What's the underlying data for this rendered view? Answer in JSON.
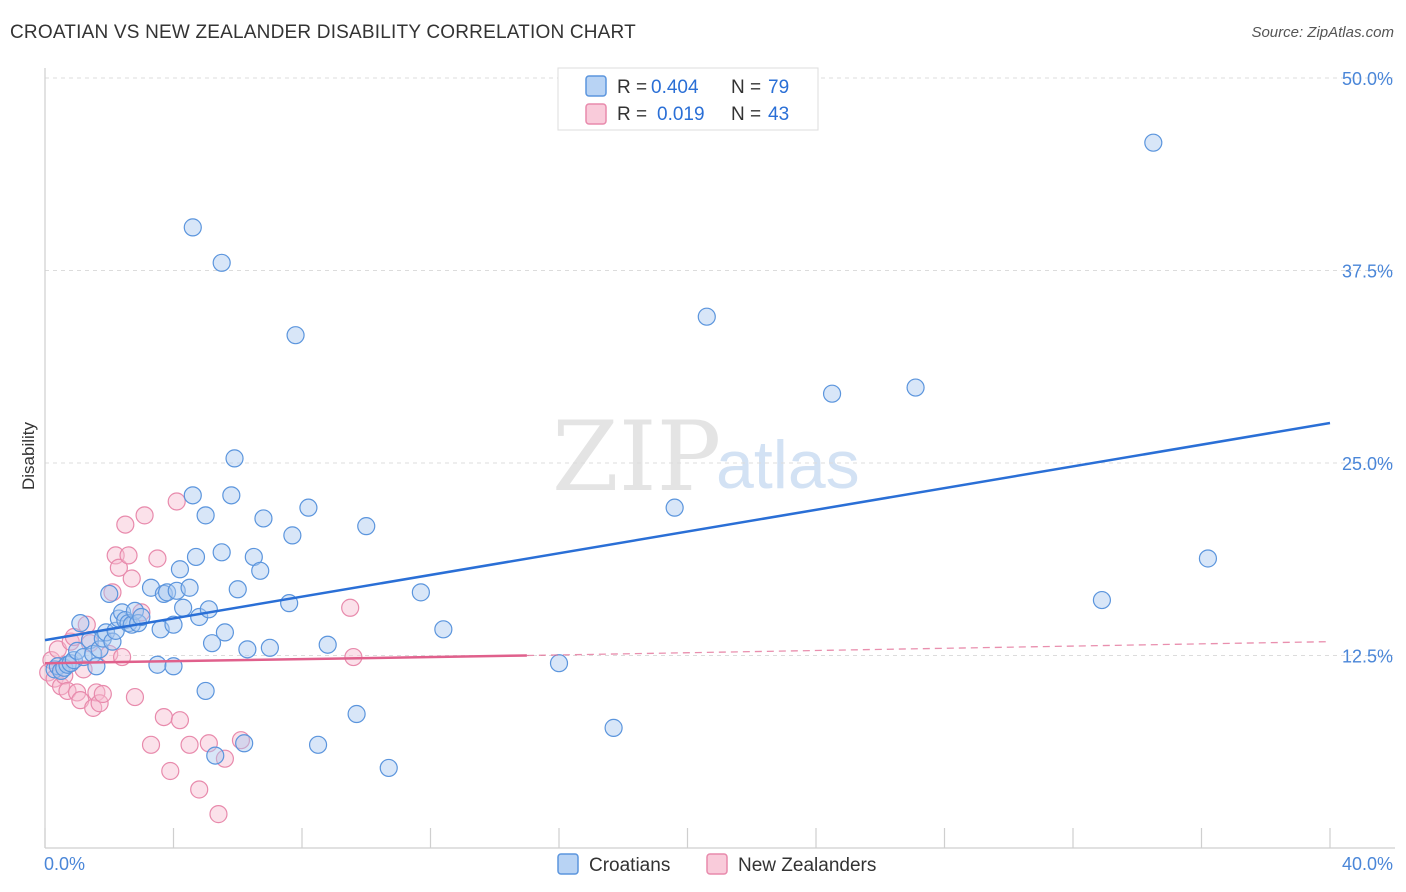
{
  "title": "CROATIAN VS NEW ZEALANDER DISABILITY CORRELATION CHART",
  "source": "Source: ZipAtlas.com",
  "watermark": {
    "zip": "ZIP",
    "atlas": "atlas"
  },
  "legend": {
    "r_label": "R =",
    "n_label": "N =",
    "croatians": {
      "r": "0.404",
      "n": "79"
    },
    "new_zealanders": {
      "r": "0.019",
      "n": "43"
    }
  },
  "colors": {
    "croatians_fill": "#a9c8f0",
    "croatians_stroke": "#5b95dd",
    "croatians_line": "#2a6fd6",
    "nz_fill": "#f6bcd0",
    "nz_stroke": "#e88aac",
    "nz_line": "#e0608c"
  },
  "chart_data": {
    "type": "scatter",
    "title": "CROATIAN VS NEW ZEALANDER DISABILITY CORRELATION CHART",
    "xlabel": "",
    "ylabel": "Disability",
    "xlim": [
      0,
      40
    ],
    "ylim": [
      0,
      50
    ],
    "x_tick_labels": [
      "0.0%",
      "40.0%"
    ],
    "y_ticks": [
      12.5,
      25.0,
      37.5,
      50.0
    ],
    "y_tick_labels": [
      "12.5%",
      "25.0%",
      "37.5%",
      "50.0%"
    ],
    "grid": true,
    "legend_position": "top-center",
    "series": [
      {
        "name": "Croatians",
        "r": 0.404,
        "n": 79,
        "trend": {
          "x": [
            0,
            40
          ],
          "y": [
            13.5,
            27.6
          ],
          "style": "solid"
        },
        "points": [
          [
            0.3,
            11.6
          ],
          [
            0.4,
            11.8
          ],
          [
            0.5,
            11.5
          ],
          [
            0.6,
            11.7
          ],
          [
            0.7,
            11.9
          ],
          [
            0.8,
            12.0
          ],
          [
            0.9,
            12.2
          ],
          [
            1.0,
            12.8
          ],
          [
            1.1,
            14.6
          ],
          [
            1.2,
            12.4
          ],
          [
            1.4,
            13.5
          ],
          [
            1.5,
            12.6
          ],
          [
            1.6,
            11.8
          ],
          [
            1.7,
            12.9
          ],
          [
            1.8,
            13.6
          ],
          [
            1.9,
            14.0
          ],
          [
            2.0,
            16.5
          ],
          [
            2.1,
            13.4
          ],
          [
            2.2,
            14.1
          ],
          [
            2.3,
            14.9
          ],
          [
            2.4,
            15.3
          ],
          [
            2.5,
            14.8
          ],
          [
            2.6,
            14.6
          ],
          [
            2.7,
            14.5
          ],
          [
            2.8,
            15.4
          ],
          [
            2.9,
            14.6
          ],
          [
            3.0,
            15.0
          ],
          [
            3.3,
            16.9
          ],
          [
            3.5,
            11.9
          ],
          [
            3.6,
            14.2
          ],
          [
            3.7,
            16.5
          ],
          [
            3.8,
            16.6
          ],
          [
            4.0,
            11.8
          ],
          [
            4.0,
            14.5
          ],
          [
            4.1,
            16.7
          ],
          [
            4.2,
            18.1
          ],
          [
            4.3,
            15.6
          ],
          [
            4.5,
            16.9
          ],
          [
            4.6,
            22.9
          ],
          [
            4.6,
            40.3
          ],
          [
            4.7,
            18.9
          ],
          [
            4.8,
            15.0
          ],
          [
            5.0,
            21.6
          ],
          [
            5.0,
            10.2
          ],
          [
            5.1,
            15.5
          ],
          [
            5.2,
            13.3
          ],
          [
            5.3,
            6.0
          ],
          [
            5.5,
            38.0
          ],
          [
            5.5,
            19.2
          ],
          [
            5.6,
            14.0
          ],
          [
            5.8,
            22.9
          ],
          [
            5.9,
            25.3
          ],
          [
            6.0,
            16.8
          ],
          [
            6.2,
            6.8
          ],
          [
            6.3,
            12.9
          ],
          [
            6.5,
            18.9
          ],
          [
            6.7,
            18.0
          ],
          [
            6.8,
            21.4
          ],
          [
            7.0,
            13.0
          ],
          [
            7.6,
            15.9
          ],
          [
            7.7,
            20.3
          ],
          [
            7.8,
            33.3
          ],
          [
            8.2,
            22.1
          ],
          [
            8.5,
            6.7
          ],
          [
            8.8,
            13.2
          ],
          [
            9.7,
            8.7
          ],
          [
            10.0,
            20.9
          ],
          [
            10.7,
            5.2
          ],
          [
            11.7,
            16.6
          ],
          [
            12.4,
            14.2
          ],
          [
            16.0,
            12.0
          ],
          [
            17.7,
            7.8
          ],
          [
            19.6,
            22.1
          ],
          [
            20.6,
            34.5
          ],
          [
            24.5,
            29.5
          ],
          [
            27.1,
            29.9
          ],
          [
            32.9,
            16.1
          ],
          [
            34.5,
            45.8
          ],
          [
            36.2,
            18.8
          ]
        ]
      },
      {
        "name": "New Zealanders",
        "r": 0.019,
        "n": 43,
        "trend": {
          "x": [
            0,
            15
          ],
          "y": [
            12.0,
            12.5
          ],
          "style": "solid"
        },
        "trend_extension": {
          "x": [
            15,
            40
          ],
          "y": [
            12.5,
            13.4
          ],
          "style": "dashed"
        },
        "points": [
          [
            0.1,
            11.4
          ],
          [
            0.2,
            12.2
          ],
          [
            0.3,
            11.0
          ],
          [
            0.4,
            12.9
          ],
          [
            0.5,
            10.5
          ],
          [
            0.6,
            11.2
          ],
          [
            0.7,
            10.2
          ],
          [
            0.8,
            13.4
          ],
          [
            0.9,
            13.7
          ],
          [
            1.0,
            10.1
          ],
          [
            1.1,
            9.6
          ],
          [
            1.2,
            11.6
          ],
          [
            1.3,
            14.5
          ],
          [
            1.4,
            13.3
          ],
          [
            1.5,
            9.1
          ],
          [
            1.6,
            10.1
          ],
          [
            1.7,
            9.4
          ],
          [
            1.8,
            10.0
          ],
          [
            2.0,
            12.6
          ],
          [
            2.1,
            16.6
          ],
          [
            2.2,
            19.0
          ],
          [
            2.3,
            18.2
          ],
          [
            2.4,
            12.4
          ],
          [
            2.5,
            21.0
          ],
          [
            2.6,
            19.0
          ],
          [
            2.7,
            17.5
          ],
          [
            2.8,
            9.8
          ],
          [
            3.0,
            15.3
          ],
          [
            3.1,
            21.6
          ],
          [
            3.3,
            6.7
          ],
          [
            3.5,
            18.8
          ],
          [
            3.7,
            8.5
          ],
          [
            3.9,
            5.0
          ],
          [
            4.1,
            22.5
          ],
          [
            4.2,
            8.3
          ],
          [
            4.5,
            6.7
          ],
          [
            4.8,
            3.8
          ],
          [
            5.1,
            6.8
          ],
          [
            5.4,
            2.2
          ],
          [
            5.6,
            5.8
          ],
          [
            6.1,
            7.0
          ],
          [
            9.5,
            15.6
          ],
          [
            9.6,
            12.4
          ]
        ]
      }
    ]
  }
}
